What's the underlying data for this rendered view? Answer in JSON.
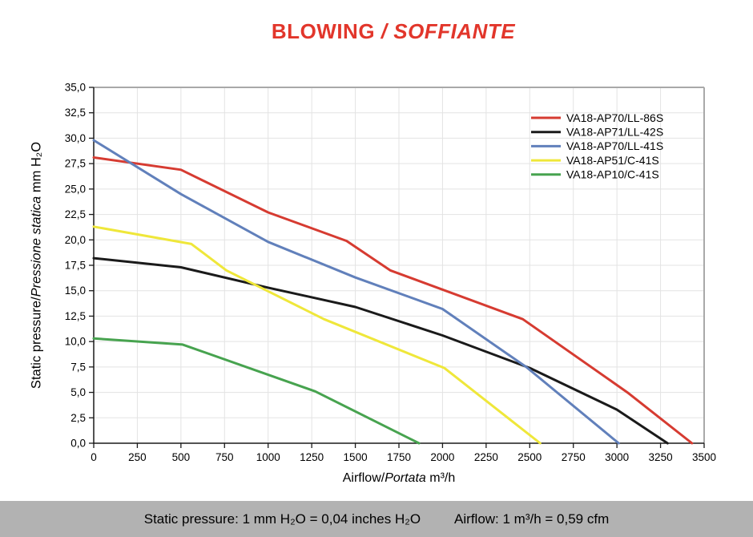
{
  "title": {
    "text_bold": "BLOWING",
    "text_italic": "/ SOFFIANTE",
    "color": "#e2362b"
  },
  "chart_data": {
    "type": "line",
    "title": "BLOWING / SOFFIANTE",
    "grid": true,
    "legend_position": "top-right",
    "x_axis": {
      "label_regular": "Airflow/",
      "label_italic": "Portata",
      "label_unit": " m³/h",
      "min": 0,
      "max": 3500,
      "tick_step": 250,
      "ticks": [
        0,
        250,
        500,
        750,
        1000,
        1250,
        1500,
        1750,
        2000,
        2250,
        2500,
        2750,
        3000,
        3250,
        3500
      ]
    },
    "y_axis": {
      "label_regular": "Static pressure/",
      "label_italic": "Pressione statica",
      "label_unit": " mm H₂O",
      "min": 0,
      "max": 35,
      "tick_step": 2.5,
      "ticks": [
        0,
        2.5,
        5,
        7.5,
        10,
        12.5,
        15,
        17.5,
        20,
        22.5,
        25,
        27.5,
        30,
        32.5,
        35
      ],
      "tick_labels": [
        "0,0",
        "2,5",
        "5,0",
        "7,5",
        "10,0",
        "12,5",
        "15,0",
        "17,5",
        "20,0",
        "22,5",
        "25,0",
        "27,5",
        "30,0",
        "32,5",
        "35,0"
      ]
    },
    "series": [
      {
        "name": "VA18-AP70/LL-86S",
        "color": "#d63b31",
        "points": [
          [
            0,
            28.1
          ],
          [
            500,
            26.9
          ],
          [
            1000,
            22.7
          ],
          [
            1450,
            19.9
          ],
          [
            1700,
            17.0
          ],
          [
            2460,
            12.2
          ],
          [
            3060,
            5.0
          ],
          [
            3430,
            0
          ]
        ]
      },
      {
        "name": "VA18-AP71/LL-42S",
        "color": "#1a1a1a",
        "points": [
          [
            0,
            18.2
          ],
          [
            500,
            17.3
          ],
          [
            1000,
            15.3
          ],
          [
            1500,
            13.4
          ],
          [
            2000,
            10.6
          ],
          [
            2500,
            7.4
          ],
          [
            3000,
            3.3
          ],
          [
            3290,
            0
          ]
        ]
      },
      {
        "name": "VA18-AP70/LL-41S",
        "color": "#6180bb",
        "points": [
          [
            0,
            29.8
          ],
          [
            500,
            24.5
          ],
          [
            1000,
            19.8
          ],
          [
            1500,
            16.3
          ],
          [
            2000,
            13.2
          ],
          [
            2480,
            7.5
          ],
          [
            3010,
            0
          ]
        ]
      },
      {
        "name": "VA18-AP51/C-41S",
        "color": "#efe73a",
        "points": [
          [
            0,
            21.3
          ],
          [
            560,
            19.6
          ],
          [
            760,
            17.0
          ],
          [
            1320,
            12.2
          ],
          [
            2010,
            7.4
          ],
          [
            2560,
            0
          ]
        ]
      },
      {
        "name": "VA18-AP10/C-41S",
        "color": "#47a34f",
        "points": [
          [
            0,
            10.3
          ],
          [
            510,
            9.7
          ],
          [
            1270,
            5.1
          ],
          [
            1865,
            0
          ]
        ]
      }
    ],
    "styles": {
      "grid_color": "#e3e3e3",
      "border_color": "#a9a9a9",
      "axis_color": "#1a1a1a",
      "tick_label_size": 13.5,
      "legend_label_size": 14
    }
  },
  "footer": {
    "background": "#b2b2b2",
    "text_left": "Static pressure: 1 mm H₂O = 0,04 inches H₂O",
    "text_right": "Airflow: 1 m³/h = 0,59 cfm"
  }
}
